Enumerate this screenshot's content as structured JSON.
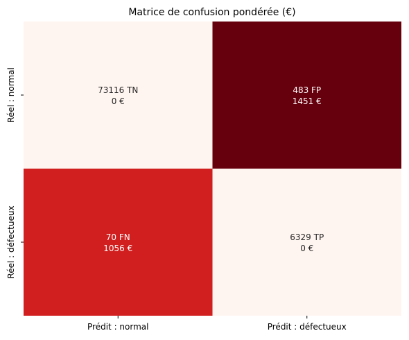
{
  "chart_data": {
    "type": "heatmap",
    "title": "Matrice de confusion pondérée (€)",
    "x_categories": [
      "Prédit : normal",
      "Prédit : défectueux"
    ],
    "y_categories": [
      "Réel : normal",
      "Réel : défectueux"
    ],
    "cells": [
      {
        "row": 0,
        "col": 0,
        "count": 73116,
        "code": "TN",
        "cost": 0,
        "color": "#fff5f0",
        "text_color": "#262626"
      },
      {
        "row": 0,
        "col": 1,
        "count": 483,
        "code": "FP",
        "cost": 1451,
        "color": "#67000d",
        "text_color": "#ffffff"
      },
      {
        "row": 1,
        "col": 0,
        "count": 70,
        "code": "FN",
        "cost": 1056,
        "color": "#d11f1f",
        "text_color": "#ffffff"
      },
      {
        "row": 1,
        "col": 1,
        "count": 6329,
        "code": "TP",
        "cost": 0,
        "color": "#fff5f0",
        "text_color": "#262626"
      }
    ],
    "currency": "€",
    "colormap": "Reds",
    "colorbar": false,
    "grid": false
  }
}
